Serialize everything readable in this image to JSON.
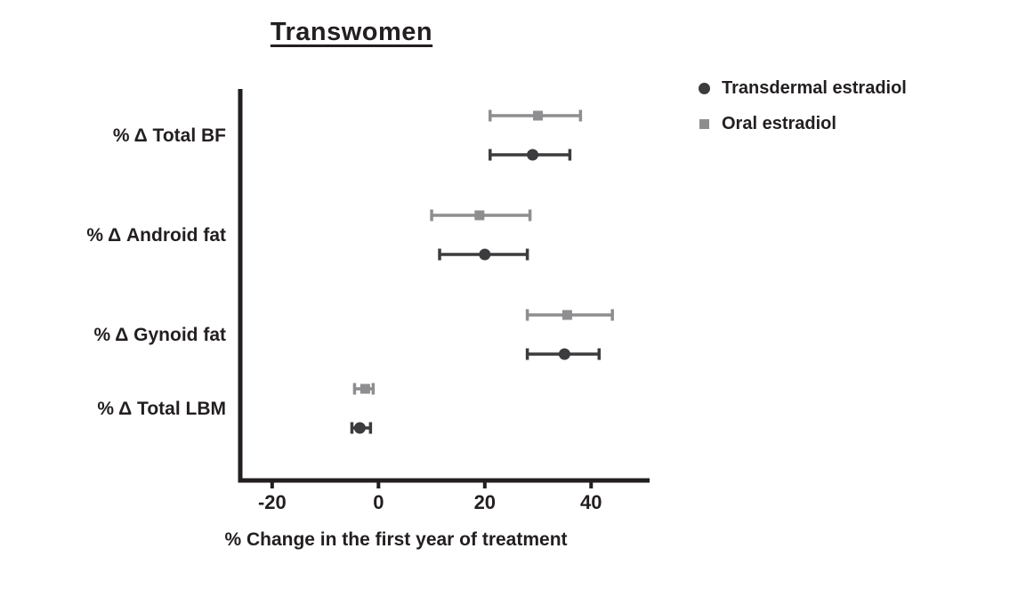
{
  "page": {
    "background": "#ffffff",
    "text_color": "#231f20"
  },
  "chart_data": {
    "type": "scatter",
    "variant": "horizontal dot plot with error bars (forest-style)",
    "title": "Transwomen",
    "xlabel": "% Change in the first year of treatment",
    "xticks": [
      -20,
      0,
      20,
      40
    ],
    "xlim": [
      -26,
      51
    ],
    "grid": false,
    "legend_position": "top-right",
    "axis_color": "#231f20",
    "categories": [
      "% Δ Total BF",
      "% Δ Android fat",
      "% Δ Gynoid fat",
      "% Δ Total LBM"
    ],
    "series": [
      {
        "name": "Oral estradiol",
        "marker": "square",
        "color": "#8e8e90",
        "values": [
          30,
          19,
          35.5,
          -2.5
        ],
        "ci_low": [
          21,
          10,
          28,
          -4.5
        ],
        "ci_high": [
          38,
          28.5,
          44,
          -1
        ]
      },
      {
        "name": "Transdermal estradiol",
        "marker": "circle",
        "color": "#3c3c3e",
        "values": [
          29,
          20,
          35,
          -3.5
        ],
        "ci_low": [
          21,
          11.5,
          28,
          -5
        ],
        "ci_high": [
          36,
          28,
          41.5,
          -1.5
        ]
      }
    ]
  }
}
